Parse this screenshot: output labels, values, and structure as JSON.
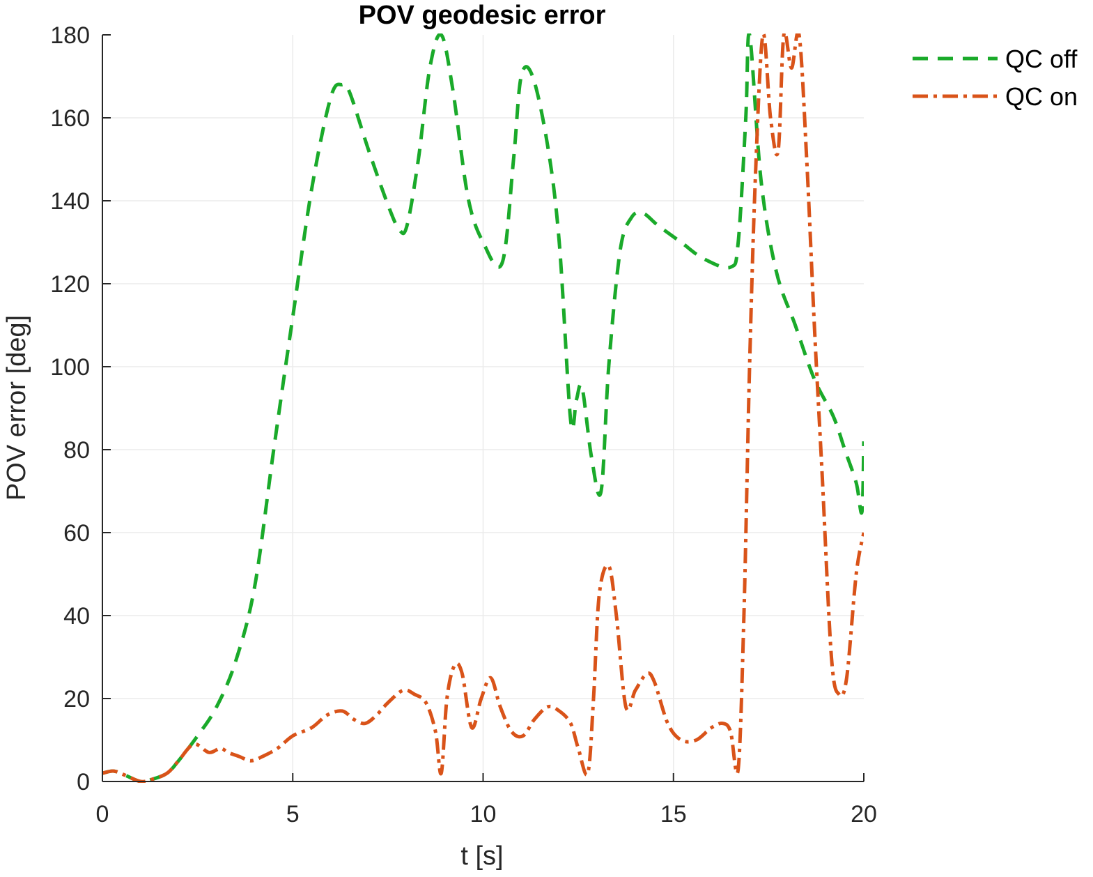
{
  "chart_data": {
    "type": "line",
    "title": "POV geodesic error",
    "xlabel": "t [s]",
    "ylabel": "POV error [deg]",
    "xlim": [
      0,
      20
    ],
    "ylim": [
      0,
      180
    ],
    "xticks": [
      0,
      5,
      10,
      15,
      20
    ],
    "yticks": [
      0,
      20,
      40,
      60,
      80,
      100,
      120,
      140,
      160,
      180
    ],
    "grid": true,
    "legend_position": "top-right outside",
    "series": [
      {
        "name": "QC off",
        "color": "#1aaa2a",
        "style": "dashed",
        "x": [
          0,
          0.3,
          0.6,
          1.0,
          1.3,
          1.7,
          2.0,
          2.5,
          3.0,
          3.5,
          4.0,
          4.5,
          5.0,
          5.5,
          6.0,
          6.3,
          6.5,
          7.0,
          7.5,
          7.8,
          8.0,
          8.3,
          8.6,
          8.9,
          9.2,
          9.6,
          10.0,
          10.5,
          10.8,
          11.0,
          11.3,
          11.7,
          12.0,
          12.3,
          12.45,
          12.6,
          12.85,
          13.1,
          13.3,
          13.6,
          13.9,
          14.2,
          14.6,
          15.2,
          15.8,
          16.5,
          16.7,
          16.9,
          17.0,
          17.3,
          17.7,
          18.2,
          18.7,
          19.2,
          19.5,
          19.8,
          19.95,
          20.0
        ],
        "y": [
          2,
          2.5,
          1.5,
          0,
          0.5,
          2,
          5,
          11,
          18,
          29,
          47,
          80,
          112,
          143,
          165,
          168,
          166,
          152,
          139,
          133,
          134,
          150,
          172,
          180,
          167,
          141,
          130,
          125,
          150,
          170,
          170,
          153,
          130,
          87,
          92,
          95,
          78,
          70,
          100,
          128,
          136,
          137,
          134,
          130,
          126,
          124,
          130,
          160,
          180,
          145,
          123,
          110,
          97,
          88,
          80,
          72,
          65,
          82
        ]
      },
      {
        "name": "QC on",
        "color": "#d95319",
        "style": "dash-dot",
        "x": [
          0,
          0.3,
          0.6,
          1.0,
          1.3,
          1.7,
          2.0,
          2.4,
          2.8,
          3.1,
          3.3,
          3.6,
          3.9,
          4.2,
          4.6,
          5.0,
          5.5,
          5.9,
          6.3,
          6.6,
          6.9,
          7.2,
          7.5,
          7.9,
          8.2,
          8.5,
          8.75,
          8.9,
          9.05,
          9.25,
          9.45,
          9.7,
          9.95,
          10.2,
          10.45,
          10.75,
          11.05,
          11.35,
          11.7,
          12.0,
          12.3,
          12.5,
          12.75,
          12.9,
          13.05,
          13.3,
          13.5,
          13.75,
          14.0,
          14.3,
          14.5,
          14.85,
          15.2,
          15.6,
          16.0,
          16.3,
          16.5,
          16.7,
          16.85,
          17.0,
          17.15,
          17.35,
          17.55,
          17.75,
          17.9,
          18.1,
          18.3,
          18.5,
          18.7,
          18.9,
          19.15,
          19.35,
          19.55,
          19.8,
          20.0
        ],
        "y": [
          2,
          2.5,
          1.5,
          0,
          0.5,
          2,
          5,
          9,
          7,
          8,
          7,
          6,
          5,
          6,
          8,
          11,
          13,
          16,
          17,
          15,
          14,
          16,
          19,
          22,
          21,
          19,
          12,
          2,
          20,
          28,
          26,
          13,
          20,
          25,
          18,
          12,
          11,
          15,
          18,
          17,
          14,
          8,
          2,
          20,
          45,
          52,
          40,
          18,
          22,
          26,
          24,
          14,
          10,
          10,
          13,
          14,
          12,
          3,
          40,
          100,
          145,
          180,
          160,
          152,
          180,
          172,
          180,
          150,
          110,
          75,
          30,
          21,
          25,
          50,
          60
        ]
      }
    ]
  }
}
